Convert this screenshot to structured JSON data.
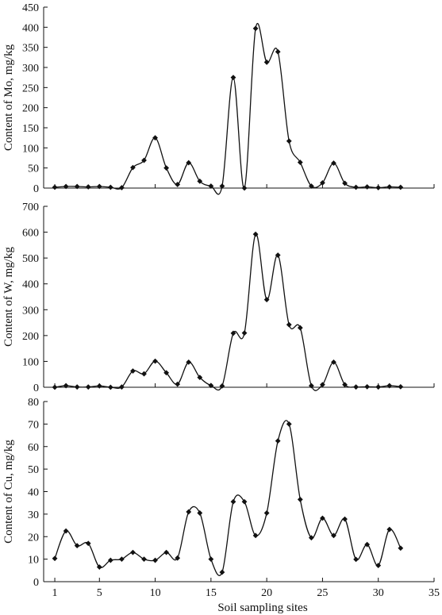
{
  "chart_data": [
    {
      "type": "line",
      "ylabel": "Content of Mo, mg/kg",
      "xlabel": "",
      "xlim": [
        0,
        35
      ],
      "ylim": [
        0,
        450
      ],
      "yticks": [
        0,
        50,
        100,
        150,
        200,
        250,
        300,
        350,
        400,
        450
      ],
      "xticks": [
        1,
        5,
        10,
        15,
        20,
        25,
        30,
        35
      ],
      "grid": false,
      "x": [
        1,
        2,
        3,
        4,
        5,
        6,
        7,
        8,
        9,
        10,
        11,
        12,
        13,
        14,
        15,
        16,
        17,
        18,
        19,
        20,
        21,
        22,
        23,
        24,
        25,
        26,
        27,
        28,
        29,
        30,
        31,
        32
      ],
      "series": [
        {
          "values": [
            2,
            4,
            4,
            3,
            4,
            2,
            1,
            51,
            69,
            125,
            50,
            9,
            63,
            17,
            5,
            5,
            275,
            0,
            397,
            313,
            339,
            117,
            64,
            5,
            13,
            62,
            12,
            2,
            3,
            1,
            3,
            2
          ]
        }
      ]
    },
    {
      "type": "line",
      "ylabel": "Content of W, mg/kg",
      "xlabel": "",
      "xlim": [
        0,
        35
      ],
      "ylim": [
        0,
        700
      ],
      "yticks": [
        0,
        100,
        200,
        300,
        400,
        500,
        600,
        700
      ],
      "xticks": [
        1,
        5,
        10,
        15,
        20,
        25,
        30,
        35
      ],
      "grid": false,
      "x": [
        1,
        2,
        3,
        4,
        5,
        6,
        7,
        8,
        9,
        10,
        11,
        12,
        13,
        14,
        15,
        16,
        17,
        18,
        19,
        20,
        21,
        22,
        23,
        24,
        25,
        26,
        27,
        28,
        29,
        30,
        31,
        32
      ],
      "series": [
        {
          "values": [
            0,
            6,
            1,
            1,
            5,
            0,
            1,
            63,
            52,
            101,
            56,
            12,
            97,
            38,
            7,
            5,
            209,
            210,
            592,
            339,
            511,
            242,
            230,
            6,
            10,
            97,
            10,
            1,
            2,
            1,
            6,
            2
          ]
        }
      ]
    },
    {
      "type": "line",
      "ylabel": "Content of Cu, mg/kg",
      "xlabel": "Soil sampling sites",
      "xlim": [
        0,
        35
      ],
      "ylim": [
        0,
        80
      ],
      "yticks": [
        0,
        10,
        20,
        30,
        40,
        50,
        60,
        70,
        80
      ],
      "xticks": [
        1,
        5,
        10,
        15,
        20,
        25,
        30,
        35
      ],
      "xtick_labels": [
        "1",
        "5",
        "10",
        "15",
        "20",
        "25",
        "30",
        "35"
      ],
      "grid": false,
      "x": [
        1,
        2,
        3,
        4,
        5,
        6,
        7,
        8,
        9,
        10,
        11,
        12,
        13,
        14,
        15,
        16,
        17,
        18,
        19,
        20,
        21,
        22,
        23,
        24,
        25,
        26,
        27,
        28,
        29,
        30,
        31,
        32
      ],
      "series": [
        {
          "values": [
            10.3,
            22.5,
            16,
            17,
            6.5,
            9.5,
            10,
            13,
            10,
            9.5,
            13,
            10.5,
            31,
            30.5,
            10,
            4.2,
            35.5,
            35.5,
            20.5,
            30.5,
            62.5,
            70,
            36.5,
            19.5,
            28.2,
            20.5,
            27.8,
            9.9,
            16.5,
            7.2,
            23.2,
            14.9
          ]
        }
      ]
    }
  ]
}
